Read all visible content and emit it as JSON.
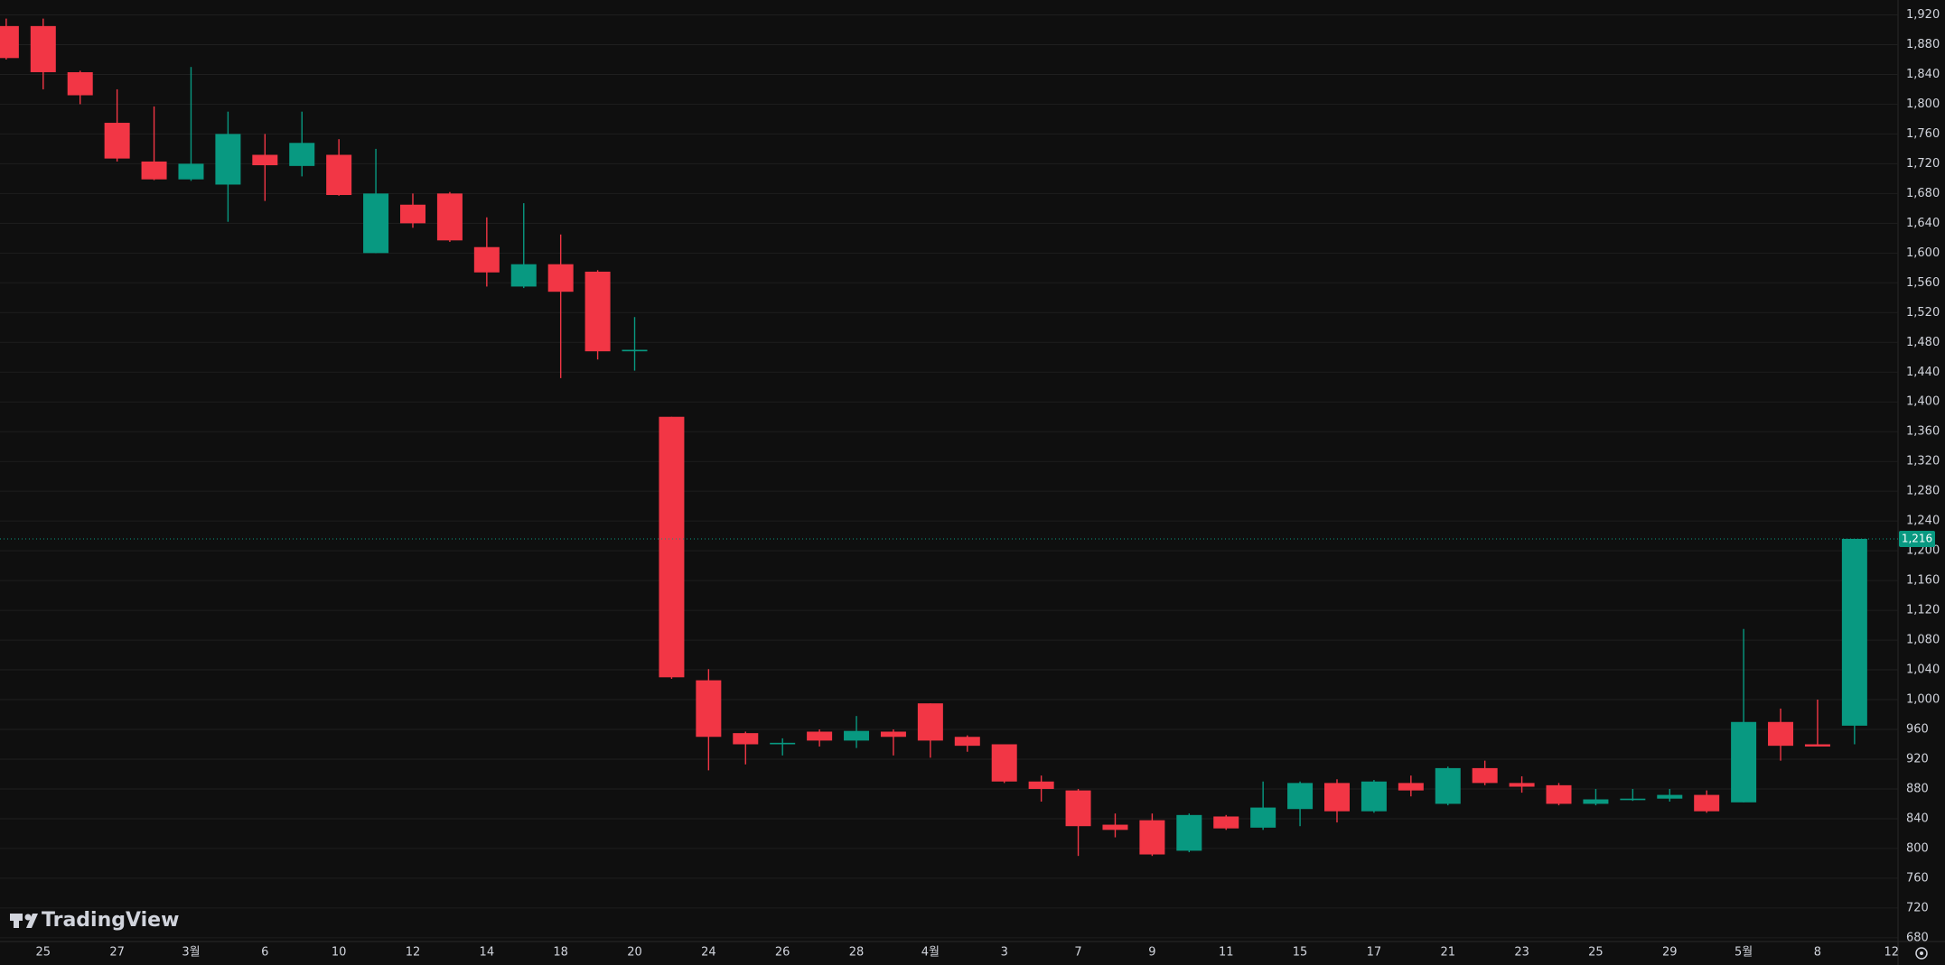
{
  "chart_data": {
    "type": "candlestick",
    "watermark": "TradingView",
    "up_color": "#089981",
    "down_color": "#f23645",
    "categories": [
      null,
      "25",
      null,
      "27",
      null,
      "3월",
      null,
      "6",
      null,
      "10",
      null,
      "12",
      null,
      "14",
      null,
      "18",
      null,
      "20",
      null,
      "24",
      null,
      "26",
      null,
      "28",
      null,
      "4월",
      null,
      "3",
      null,
      "7",
      null,
      "9",
      null,
      "11",
      null,
      "15",
      null,
      "17",
      null,
      "21",
      null,
      "23",
      null,
      "25",
      null,
      "29",
      null,
      "5월",
      null,
      "8",
      null,
      "12"
    ],
    "open": [
      1905,
      1905,
      1843,
      1775,
      1723,
      1699,
      1692,
      1732,
      1717,
      1732,
      1600,
      1665,
      1680,
      1608,
      1555,
      1585,
      1575,
      1468,
      1380,
      1026,
      955,
      940,
      957,
      945,
      957,
      995,
      950,
      940,
      890,
      878,
      832,
      838,
      797,
      843,
      828,
      853,
      888,
      850,
      888,
      860,
      908,
      888,
      885,
      860,
      865,
      867,
      872,
      862,
      970,
      940,
      965,
      null
    ],
    "high": [
      1915,
      1915,
      1845,
      1820,
      1797,
      1850,
      1790,
      1760,
      1790,
      1753,
      1740,
      1680,
      1682,
      1648,
      1667,
      1625,
      1577,
      1514,
      1380,
      1041,
      957,
      948,
      960,
      978,
      960,
      995,
      952,
      940,
      898,
      880,
      847,
      847,
      847,
      845,
      890,
      890,
      893,
      892,
      898,
      910,
      918,
      897,
      888,
      880,
      880,
      880,
      878,
      1095,
      988,
      1000,
      1216,
      null
    ],
    "low": [
      1860,
      1820,
      1800,
      1723,
      1698,
      1697,
      1642,
      1670,
      1703,
      1677,
      1600,
      1634,
      1615,
      1555,
      1553,
      1432,
      1457,
      1442,
      1028,
      905,
      913,
      925,
      937,
      935,
      925,
      922,
      930,
      888,
      863,
      790,
      815,
      790,
      795,
      825,
      825,
      830,
      835,
      848,
      870,
      858,
      885,
      875,
      858,
      858,
      864,
      863,
      848,
      862,
      918,
      937,
      940,
      null
    ],
    "close": [
      1862,
      1843,
      1812,
      1727,
      1699,
      1720,
      1760,
      1718,
      1748,
      1678,
      1680,
      1640,
      1617,
      1574,
      1585,
      1548,
      1468,
      1470,
      1030,
      950,
      940,
      942,
      945,
      958,
      950,
      945,
      938,
      890,
      880,
      830,
      825,
      792,
      845,
      827,
      855,
      888,
      850,
      890,
      878,
      908,
      888,
      883,
      860,
      866,
      867,
      872,
      850,
      970,
      938,
      937,
      1216,
      null
    ],
    "ylim": [
      675,
      1940
    ],
    "yticks": [
      680,
      720,
      760,
      800,
      840,
      880,
      920,
      960,
      {
        "value": 1000,
        "label": "1,000"
      },
      {
        "value": 1040,
        "label": "1,040"
      },
      {
        "value": 1080,
        "label": "1,080"
      },
      {
        "value": 1120,
        "label": "1,120"
      },
      {
        "value": 1160,
        "label": "1,160"
      },
      {
        "value": 1200,
        "label": "1,200"
      },
      {
        "value": 1240,
        "label": "1,240"
      },
      {
        "value": 1280,
        "label": "1,280"
      },
      {
        "value": 1320,
        "label": "1,320"
      },
      {
        "value": 1360,
        "label": "1,360"
      },
      {
        "value": 1400,
        "label": "1,400"
      },
      {
        "value": 1440,
        "label": "1,440"
      },
      {
        "value": 1480,
        "label": "1,480"
      },
      {
        "value": 1520,
        "label": "1,520"
      },
      {
        "value": 1560,
        "label": "1,560"
      },
      {
        "value": 1600,
        "label": "1,600"
      },
      {
        "value": 1640,
        "label": "1,640"
      },
      {
        "value": 1680,
        "label": "1,680"
      },
      {
        "value": 1720,
        "label": "1,720"
      },
      {
        "value": 1760,
        "label": "1,760"
      },
      {
        "value": 1800,
        "label": "1,800"
      },
      {
        "value": 1840,
        "label": "1,840"
      },
      {
        "value": 1880,
        "label": "1,880"
      },
      {
        "value": 1920,
        "label": "1,920"
      }
    ],
    "grid": true,
    "last_price": {
      "value": 1216,
      "label": "1,216"
    }
  }
}
